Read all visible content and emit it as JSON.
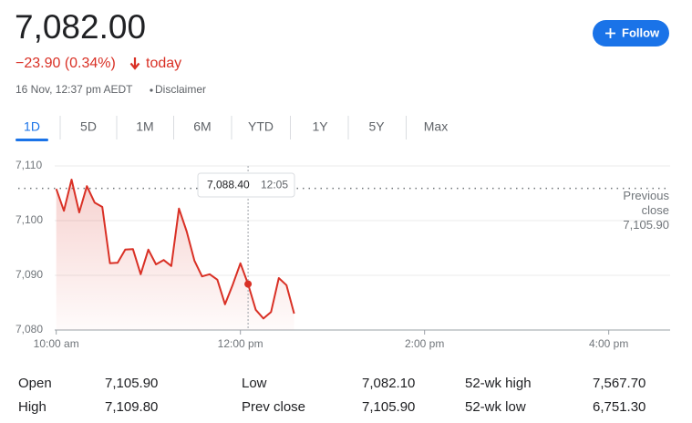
{
  "header": {
    "price": "7,082.00",
    "change": "−23.90 (0.34%)",
    "period": "today",
    "timestamp": "16 Nov, 12:37 pm AEDT",
    "disclaimer": "Disclaimer",
    "follow_button": "Follow"
  },
  "tabs": [
    "1D",
    "5D",
    "1M",
    "6M",
    "YTD",
    "1Y",
    "5Y",
    "Max"
  ],
  "active_tab": 0,
  "chart_data": {
    "type": "line",
    "x": [
      600,
      605,
      610,
      615,
      620,
      625,
      630,
      635,
      640,
      645,
      650,
      655,
      660,
      665,
      670,
      675,
      680,
      685,
      690,
      695,
      700,
      705,
      710,
      715,
      720,
      725,
      730,
      735,
      740,
      745,
      750,
      755
    ],
    "values": [
      7105.8,
      7101.8,
      7107.5,
      7101.5,
      7106.3,
      7103.3,
      7102.5,
      7092.2,
      7092.3,
      7094.7,
      7094.8,
      7090.2,
      7094.7,
      7092.0,
      7092.8,
      7091.7,
      7102.2,
      7098.0,
      7092.7,
      7089.8,
      7090.2,
      7089.2,
      7084.7,
      7088.3,
      7092.2,
      7088.4,
      7083.7,
      7082.1,
      7083.3,
      7089.5,
      7088.2,
      7083.0
    ],
    "color": "#d93025",
    "xlim": [
      599,
      1000
    ],
    "xticks": [
      {
        "value": 600,
        "label": "10:00 am"
      },
      {
        "value": 720,
        "label": "12:00 pm"
      },
      {
        "value": 840,
        "label": "2:00 pm"
      },
      {
        "value": 960,
        "label": "4:00 pm"
      }
    ],
    "ylim": [
      7080,
      7110
    ],
    "yticks": [
      {
        "value": 7080,
        "label": "7,080"
      },
      {
        "value": 7090,
        "label": "7,090"
      },
      {
        "value": 7100,
        "label": "7,100"
      },
      {
        "value": 7110,
        "label": "7,110"
      }
    ],
    "grid": true,
    "previous_close": {
      "name": "Previous close",
      "value": 7105.9,
      "label": "7,105.90"
    },
    "tooltip": {
      "x": 725,
      "x_label": "12:05",
      "value": 7088.4,
      "label": "7,088.40"
    }
  },
  "stats": {
    "rows": [
      [
        [
          "Open",
          "7,105.90"
        ],
        [
          "Low",
          "7,082.10"
        ],
        [
          "52-wk high",
          "7,567.70"
        ]
      ],
      [
        [
          "High",
          "7,109.80"
        ],
        [
          "Prev close",
          "7,105.90"
        ],
        [
          "52-wk low",
          "6,751.30"
        ]
      ]
    ]
  }
}
